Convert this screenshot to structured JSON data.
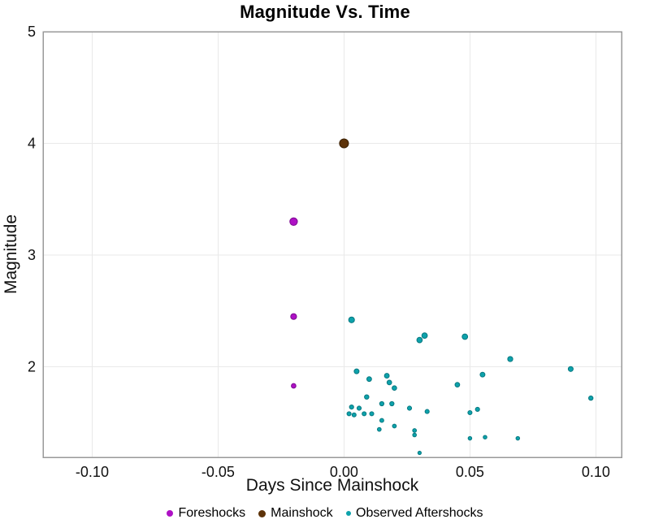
{
  "chart_data": {
    "type": "scatter",
    "title": "Magnitude Vs. Time",
    "xlabel": "Days Since Mainshock",
    "ylabel": "Magnitude",
    "xlim": [
      -0.1195,
      0.1102
    ],
    "ylim": [
      1.19,
      5.0
    ],
    "x_ticks": {
      "values": [
        -0.1,
        -0.05,
        0.0,
        0.05,
        0.1
      ],
      "labels": [
        "-0.10",
        "-0.05",
        "0.00",
        "0.05",
        "0.10"
      ]
    },
    "y_ticks": {
      "values": [
        5,
        4,
        3,
        2
      ],
      "labels": [
        "5",
        "4",
        "3",
        "2"
      ]
    },
    "grid": true,
    "legend_position": "bottom",
    "marker_size": "scales with magnitude",
    "series": [
      {
        "name": "Foreshocks",
        "color": "#ae11c5",
        "stroke": "#7d0b91",
        "points": [
          [
            -0.02,
            3.3
          ],
          [
            -0.02,
            2.45
          ],
          [
            -0.02,
            1.83
          ]
        ]
      },
      {
        "name": "Mainshock",
        "color": "#5d3309",
        "stroke": "#3a2003",
        "points": [
          [
            0.0,
            4.0
          ]
        ]
      },
      {
        "name": "Observed Aftershocks",
        "color": "#0da2ab",
        "stroke": "#097880",
        "points": [
          [
            0.003,
            2.42
          ],
          [
            0.03,
            2.24
          ],
          [
            0.032,
            2.28
          ],
          [
            0.048,
            2.27
          ],
          [
            0.066,
            2.07
          ],
          [
            0.09,
            1.98
          ],
          [
            0.005,
            1.96
          ],
          [
            0.055,
            1.93
          ],
          [
            0.017,
            1.92
          ],
          [
            0.01,
            1.89
          ],
          [
            0.018,
            1.86
          ],
          [
            0.045,
            1.84
          ],
          [
            0.02,
            1.81
          ],
          [
            0.009,
            1.73
          ],
          [
            0.098,
            1.72
          ],
          [
            0.015,
            1.67
          ],
          [
            0.019,
            1.67
          ],
          [
            0.003,
            1.64
          ],
          [
            0.006,
            1.63
          ],
          [
            0.026,
            1.63
          ],
          [
            0.053,
            1.62
          ],
          [
            0.033,
            1.6
          ],
          [
            0.05,
            1.59
          ],
          [
            0.002,
            1.58
          ],
          [
            0.008,
            1.58
          ],
          [
            0.011,
            1.58
          ],
          [
            0.004,
            1.57
          ],
          [
            0.015,
            1.52
          ],
          [
            0.02,
            1.47
          ],
          [
            0.014,
            1.44
          ],
          [
            0.028,
            1.43
          ],
          [
            0.028,
            1.39
          ],
          [
            0.056,
            1.37
          ],
          [
            0.05,
            1.36
          ],
          [
            0.069,
            1.36
          ],
          [
            0.03,
            1.23
          ]
        ]
      }
    ]
  },
  "colors": {
    "background": "#ffffff",
    "grid": "#e9e9e9",
    "axis_border": "#999999",
    "tick_text": "#111111"
  }
}
